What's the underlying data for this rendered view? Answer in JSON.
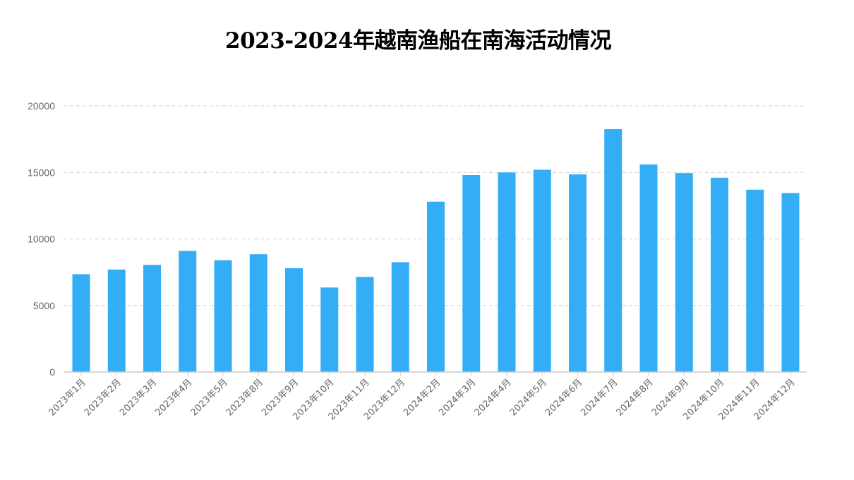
{
  "chart_data": {
    "type": "bar",
    "title": "2023-2024年越南渔船在南海活动情况",
    "xlabel": "",
    "ylabel": "",
    "ylim": [
      0,
      20000
    ],
    "yticks": [
      0,
      5000,
      10000,
      15000,
      20000
    ],
    "grid": true,
    "legend": "none",
    "bar_color": "#33adf5",
    "categories": [
      "2023年1月",
      "2023年2月",
      "2023年3月",
      "2023年4月",
      "2023年5月",
      "2023年8月",
      "2023年9月",
      "2023年10月",
      "2023年11月",
      "2023年12月",
      "2024年2月",
      "2024年3月",
      "2024年4月",
      "2024年5月",
      "2024年6月",
      "2024年7月",
      "2024年8月",
      "2024年9月",
      "2024年10月",
      "2024年11月",
      "2024年12月"
    ],
    "values": [
      7350,
      7700,
      8050,
      9100,
      8400,
      8850,
      7800,
      6350,
      7150,
      8250,
      12800,
      14800,
      15000,
      15200,
      14850,
      18250,
      15600,
      14950,
      14600,
      13700,
      13450
    ]
  }
}
